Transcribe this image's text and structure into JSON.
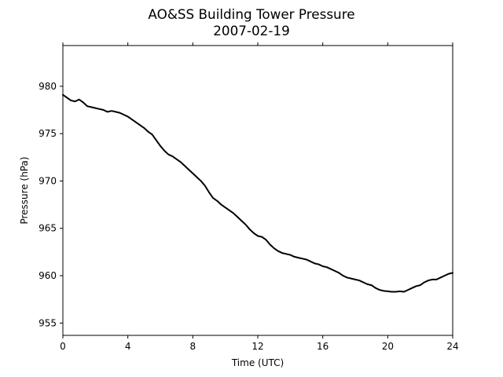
{
  "chart_data": {
    "type": "line",
    "title": "AO&SS Building Tower Pressure",
    "subtitle": "2007-02-19",
    "xlabel": "Time (UTC)",
    "ylabel": "Pressure (hPa)",
    "xlim": [
      0,
      24
    ],
    "ylim": [
      953.7,
      984.3
    ],
    "xticks": [
      0,
      4,
      8,
      12,
      16,
      20,
      24
    ],
    "yticks": [
      955,
      960,
      965,
      970,
      975,
      980
    ],
    "grid": false,
    "line_color": "#000000",
    "series": [
      {
        "x": [
          0,
          0.25,
          0.5,
          0.75,
          1.0,
          1.25,
          1.5,
          1.75,
          2.0,
          2.25,
          2.5,
          2.75,
          3.0,
          3.25,
          3.5,
          3.75,
          4.0,
          4.25,
          4.5,
          4.75,
          5.0,
          5.25,
          5.5,
          5.75,
          6.0,
          6.25,
          6.5,
          6.75,
          7.0,
          7.25,
          7.5,
          7.75,
          8.0,
          8.25,
          8.5,
          8.75,
          9.0,
          9.25,
          9.5,
          9.75,
          10.0,
          10.25,
          10.5,
          10.75,
          11.0,
          11.25,
          11.5,
          11.75,
          12.0,
          12.25,
          12.5,
          12.75,
          13.0,
          13.25,
          13.5,
          13.75,
          14.0,
          14.25,
          14.5,
          14.75,
          15.0,
          15.25,
          15.5,
          15.75,
          16.0,
          16.25,
          16.5,
          16.75,
          17.0,
          17.25,
          17.5,
          17.75,
          18.0,
          18.25,
          18.5,
          18.75,
          19.0,
          19.25,
          19.5,
          19.75,
          20.0,
          20.25,
          20.5,
          20.75,
          21.0,
          21.25,
          21.5,
          21.75,
          22.0,
          22.25,
          22.5,
          22.75,
          23.0,
          23.25,
          23.5,
          23.75,
          24.0
        ],
        "values": [
          979.1,
          978.8,
          978.5,
          978.4,
          978.6,
          978.3,
          977.9,
          977.8,
          977.7,
          977.6,
          977.5,
          977.3,
          977.4,
          977.3,
          977.2,
          977.0,
          976.8,
          976.5,
          976.2,
          975.9,
          975.6,
          975.2,
          974.9,
          974.3,
          973.7,
          973.2,
          972.8,
          972.6,
          972.3,
          972.0,
          971.6,
          971.2,
          970.8,
          970.4,
          970.0,
          969.5,
          968.8,
          968.2,
          967.9,
          967.5,
          967.2,
          966.9,
          966.6,
          966.2,
          965.8,
          965.4,
          964.9,
          964.5,
          964.2,
          964.1,
          963.8,
          963.3,
          962.9,
          962.6,
          962.4,
          962.3,
          962.2,
          962.0,
          961.9,
          961.8,
          961.7,
          961.5,
          961.3,
          961.2,
          961.0,
          960.9,
          960.7,
          960.5,
          960.3,
          960.0,
          959.8,
          959.7,
          959.6,
          959.5,
          959.3,
          959.1,
          959.0,
          958.7,
          958.5,
          958.4,
          958.35,
          958.3,
          958.3,
          958.35,
          958.3,
          958.5,
          958.7,
          958.9,
          959.0,
          959.3,
          959.5,
          959.6,
          959.6,
          959.8,
          960.0,
          960.2,
          960.3
        ]
      }
    ]
  }
}
